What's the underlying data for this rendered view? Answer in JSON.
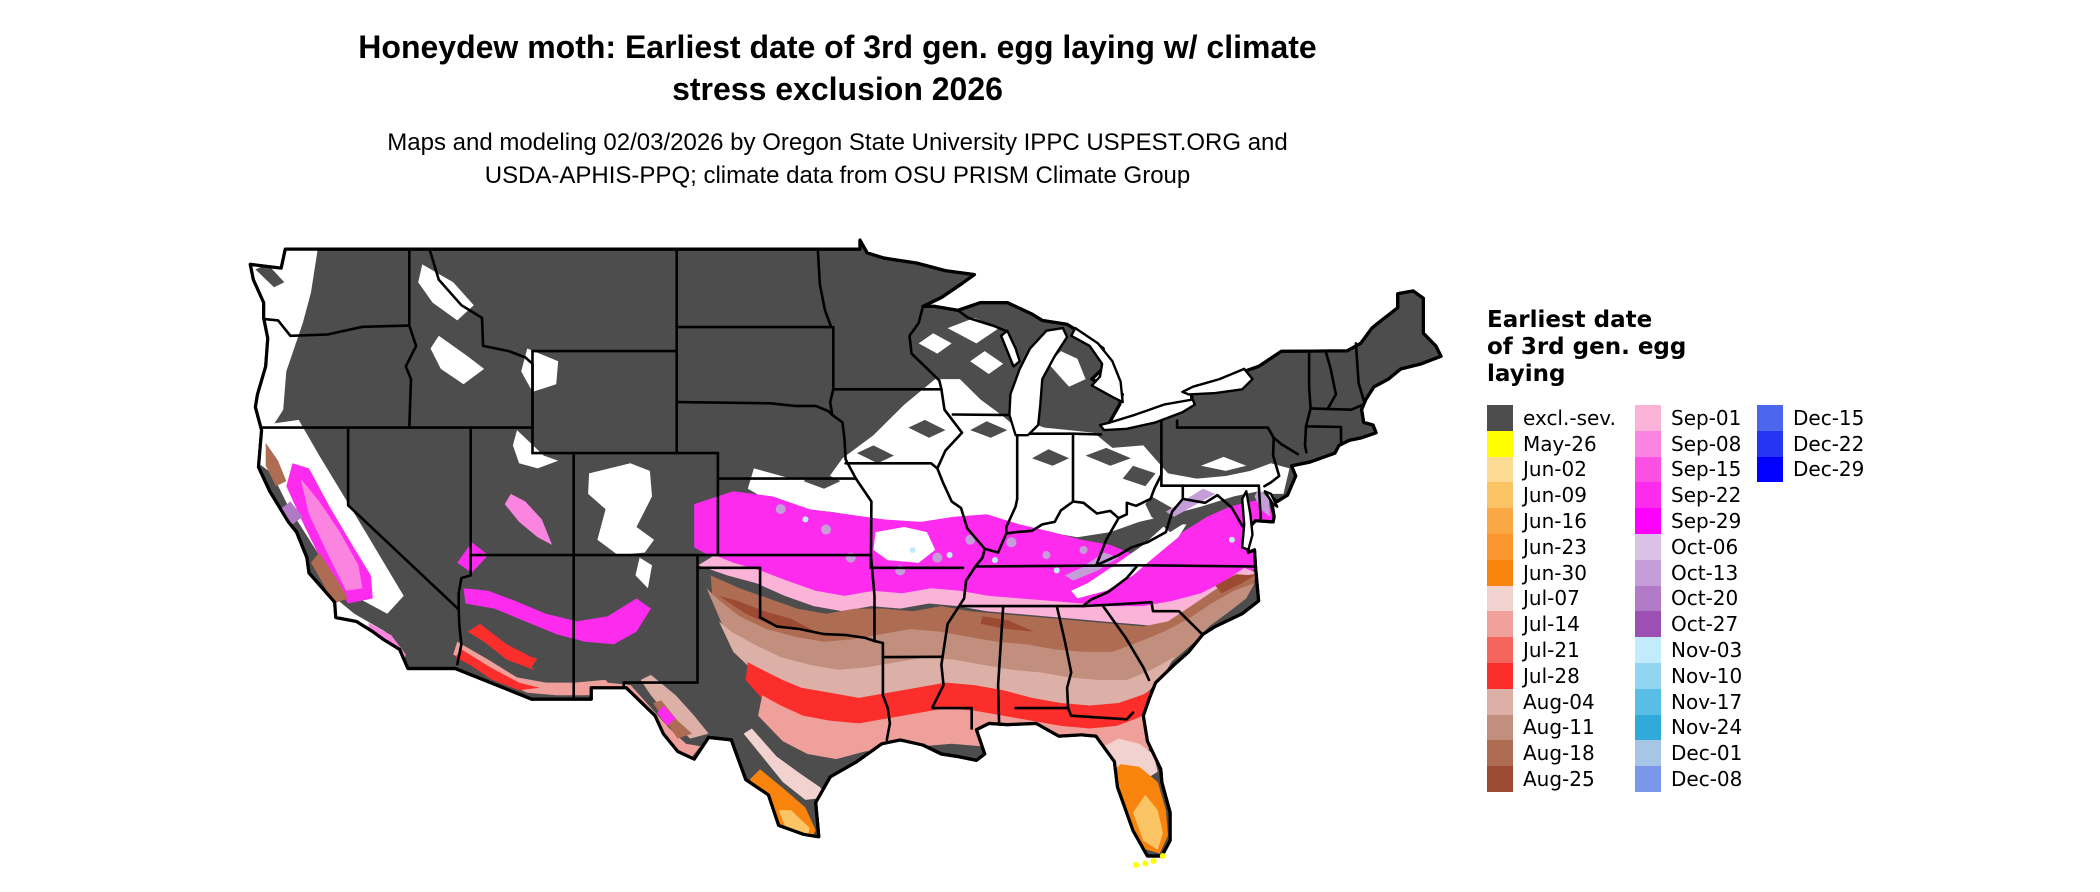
{
  "title": {
    "line1": "Honeydew moth: Earliest date of 3rd gen. egg laying w/ climate",
    "line2": "stress exclusion 2026"
  },
  "subtitle": {
    "line1": "Maps and modeling 02/03/2026 by Oregon State University IPPC USPEST.ORG and",
    "line2": "USDA-APHIS-PPQ; climate data from OSU PRISM Climate Group"
  },
  "map": {
    "type": "choropleth",
    "region": "contiguous United States",
    "base_color": "#4d4d4d",
    "border_color": "#000000",
    "background_color": "#ffffff"
  },
  "legend": {
    "title": "Earliest date\nof 3rd gen. egg\nlaying",
    "columns": [
      {
        "entries": [
          {
            "label": "excl.-sev.",
            "color": "#4d4d4d"
          },
          {
            "label": "May-26",
            "color": "#ffff00"
          },
          {
            "label": "Jun-02",
            "color": "#fcdc95"
          },
          {
            "label": "Jun-09",
            "color": "#fbc566"
          },
          {
            "label": "Jun-16",
            "color": "#faa843"
          },
          {
            "label": "Jun-23",
            "color": "#f9962e"
          },
          {
            "label": "Jun-30",
            "color": "#f8830d"
          },
          {
            "label": "Jul-07",
            "color": "#f2d2ce"
          },
          {
            "label": "Jul-14",
            "color": "#efa09b"
          },
          {
            "label": "Jul-21",
            "color": "#f4655e"
          },
          {
            "label": "Jul-28",
            "color": "#fb2e2c"
          },
          {
            "label": "Aug-04",
            "color": "#dcb0a6"
          },
          {
            "label": "Aug-11",
            "color": "#c28e7d"
          },
          {
            "label": "Aug-18",
            "color": "#ae6c53"
          },
          {
            "label": "Aug-25",
            "color": "#9c4a31"
          }
        ]
      },
      {
        "entries": [
          {
            "label": "Sep-01",
            "color": "#fbb3d8"
          },
          {
            "label": "Sep-08",
            "color": "#fb84e1"
          },
          {
            "label": "Sep-15",
            "color": "#fc50e5"
          },
          {
            "label": "Sep-22",
            "color": "#fc2bee"
          },
          {
            "label": "Sep-29",
            "color": "#fe00fd"
          },
          {
            "label": "Oct-06",
            "color": "#d9c2e6"
          },
          {
            "label": "Oct-13",
            "color": "#c59dd8"
          },
          {
            "label": "Oct-20",
            "color": "#b17ac6"
          },
          {
            "label": "Oct-27",
            "color": "#9d50b4"
          },
          {
            "label": "Nov-03",
            "color": "#c2ecfc"
          },
          {
            "label": "Nov-10",
            "color": "#91d5f1"
          },
          {
            "label": "Nov-17",
            "color": "#59bee6"
          },
          {
            "label": "Nov-24",
            "color": "#30aada"
          },
          {
            "label": "Dec-01",
            "color": "#a7c6e6"
          },
          {
            "label": "Dec-08",
            "color": "#7b97e9"
          }
        ]
      },
      {
        "entries": [
          {
            "label": "Dec-15",
            "color": "#4c66ee"
          },
          {
            "label": "Dec-22",
            "color": "#2734f2"
          },
          {
            "label": "Dec-29",
            "color": "#0000fc"
          }
        ]
      }
    ]
  }
}
